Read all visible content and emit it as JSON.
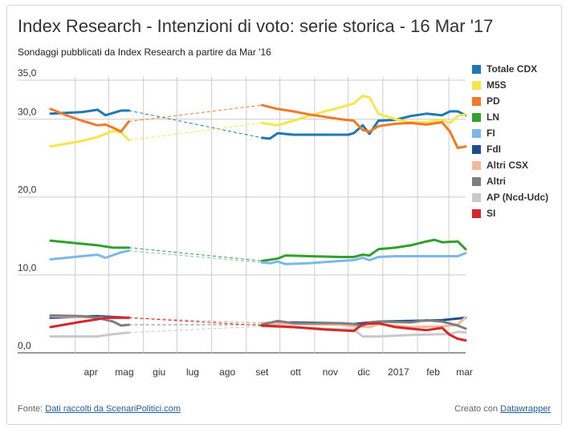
{
  "title": "Index Research - Intenzioni di voto: serie storica - 16 Mar '17",
  "subtitle": "Sondaggi pubblicati da Index Research a partire da Mar '16",
  "footer": {
    "source_prefix": "Fonte:",
    "source_link": "Dati raccolti da ScenariPolitici.com",
    "credit_prefix": "Creato con",
    "credit_link": "Datawrapper"
  },
  "chart_data": {
    "type": "line",
    "title": "Index Research - Intenzioni di voto: serie storica - 16 Mar '17",
    "subtitle": "Sondaggi pubblicati da Index Research a partire da Mar '16",
    "xlabel": "",
    "ylabel": "",
    "ylim": [
      0,
      35
    ],
    "y_ticks": [
      "0,0",
      "10,0",
      "20,0",
      "30,0",
      "35,0"
    ],
    "y_tick_values": [
      0,
      10,
      20,
      30,
      35
    ],
    "x_range": [
      "2016-03-10",
      "2017-03-16"
    ],
    "x_ticks": [
      {
        "date": "2016-04-01",
        "label": "apr"
      },
      {
        "date": "2016-05-01",
        "label": "mag"
      },
      {
        "date": "2016-06-01",
        "label": "giu"
      },
      {
        "date": "2016-07-01",
        "label": "lug"
      },
      {
        "date": "2016-08-01",
        "label": "ago"
      },
      {
        "date": "2016-09-01",
        "label": "set"
      },
      {
        "date": "2016-10-01",
        "label": "ott"
      },
      {
        "date": "2016-11-01",
        "label": "nov"
      },
      {
        "date": "2016-12-01",
        "label": "dic"
      },
      {
        "date": "2017-01-01",
        "label": "2017"
      },
      {
        "date": "2017-02-01",
        "label": "feb"
      },
      {
        "date": "2017-03-01",
        "label": "mar"
      }
    ],
    "grid": true,
    "legend_position": "right",
    "gap": [
      "2016-05-19",
      "2016-09-15"
    ],
    "series": [
      {
        "name": "Totale CDX",
        "color": "#1f77b4",
        "points": [
          [
            "2016-03-10",
            30.7
          ],
          [
            "2016-04-07",
            30.9
          ],
          [
            "2016-04-21",
            31.2
          ],
          [
            "2016-04-28",
            30.5
          ],
          [
            "2016-05-12",
            31.1
          ],
          [
            "2016-05-19",
            31.1
          ],
          [
            "2016-09-15",
            27.6
          ],
          [
            "2016-09-22",
            27.5
          ],
          [
            "2016-09-29",
            28.2
          ],
          [
            "2016-10-13",
            28.0
          ],
          [
            "2016-10-27",
            28.0
          ],
          [
            "2016-11-10",
            28.0
          ],
          [
            "2016-11-24",
            28.0
          ],
          [
            "2016-12-01",
            28.0
          ],
          [
            "2016-12-06",
            28.2
          ],
          [
            "2016-12-14",
            29.2
          ],
          [
            "2016-12-20",
            28.1
          ],
          [
            "2016-12-28",
            29.8
          ],
          [
            "2017-01-12",
            29.9
          ],
          [
            "2017-01-26",
            30.4
          ],
          [
            "2017-02-09",
            30.7
          ],
          [
            "2017-02-23",
            30.5
          ],
          [
            "2017-03-02",
            31.0
          ],
          [
            "2017-03-09",
            31.0
          ],
          [
            "2017-03-16",
            30.5
          ]
        ]
      },
      {
        "name": "M5S",
        "color": "#f7e64b",
        "points": [
          [
            "2016-03-10",
            26.5
          ],
          [
            "2016-04-07",
            27.2
          ],
          [
            "2016-04-21",
            27.7
          ],
          [
            "2016-05-05",
            28.5
          ],
          [
            "2016-05-12",
            28.3
          ],
          [
            "2016-05-19",
            27.3
          ],
          [
            "2016-09-15",
            29.5
          ],
          [
            "2016-09-29",
            29.2
          ],
          [
            "2016-10-13",
            29.8
          ],
          [
            "2016-10-27",
            30.4
          ],
          [
            "2016-11-10",
            31.0
          ],
          [
            "2016-11-24",
            31.5
          ],
          [
            "2016-12-06",
            32.0
          ],
          [
            "2016-12-14",
            33.0
          ],
          [
            "2016-12-20",
            32.8
          ],
          [
            "2016-12-28",
            30.7
          ],
          [
            "2017-01-12",
            30.0
          ],
          [
            "2017-01-26",
            29.6
          ],
          [
            "2017-02-09",
            29.6
          ],
          [
            "2017-02-23",
            29.9
          ],
          [
            "2017-03-02",
            29.5
          ],
          [
            "2017-03-09",
            30.4
          ],
          [
            "2017-03-16",
            30.6
          ]
        ]
      },
      {
        "name": "PD",
        "color": "#ef7a28",
        "points": [
          [
            "2016-03-10",
            31.3
          ],
          [
            "2016-03-24",
            30.5
          ],
          [
            "2016-04-07",
            29.8
          ],
          [
            "2016-04-21",
            29.2
          ],
          [
            "2016-04-28",
            29.3
          ],
          [
            "2016-05-05",
            28.9
          ],
          [
            "2016-05-12",
            28.4
          ],
          [
            "2016-05-19",
            29.7
          ],
          [
            "2016-09-15",
            31.8
          ],
          [
            "2016-09-29",
            31.3
          ],
          [
            "2016-10-13",
            31.0
          ],
          [
            "2016-10-27",
            30.6
          ],
          [
            "2016-11-10",
            30.3
          ],
          [
            "2016-11-24",
            30.0
          ],
          [
            "2016-12-06",
            29.8
          ],
          [
            "2016-12-14",
            28.6
          ],
          [
            "2016-12-20",
            28.4
          ],
          [
            "2016-12-28",
            29.1
          ],
          [
            "2017-01-12",
            29.4
          ],
          [
            "2017-01-26",
            29.5
          ],
          [
            "2017-02-09",
            29.3
          ],
          [
            "2017-02-23",
            29.6
          ],
          [
            "2017-03-02",
            28.4
          ],
          [
            "2017-03-09",
            26.3
          ],
          [
            "2017-03-16",
            26.5
          ]
        ]
      },
      {
        "name": "LN",
        "color": "#32a02e",
        "points": [
          [
            "2016-03-10",
            14.4
          ],
          [
            "2016-04-07",
            14.0
          ],
          [
            "2016-04-21",
            13.8
          ],
          [
            "2016-05-05",
            13.5
          ],
          [
            "2016-05-19",
            13.5
          ],
          [
            "2016-09-15",
            11.8
          ],
          [
            "2016-09-29",
            12.1
          ],
          [
            "2016-10-06",
            12.5
          ],
          [
            "2016-10-27",
            12.4
          ],
          [
            "2016-11-24",
            12.3
          ],
          [
            "2016-12-06",
            12.3
          ],
          [
            "2016-12-14",
            12.6
          ],
          [
            "2016-12-20",
            12.5
          ],
          [
            "2016-12-28",
            13.3
          ],
          [
            "2017-01-12",
            13.5
          ],
          [
            "2017-01-26",
            13.8
          ],
          [
            "2017-02-09",
            14.3
          ],
          [
            "2017-02-16",
            14.5
          ],
          [
            "2017-02-23",
            14.2
          ],
          [
            "2017-03-09",
            14.3
          ],
          [
            "2017-03-16",
            13.3
          ]
        ]
      },
      {
        "name": "FI",
        "color": "#7cb8ea",
        "points": [
          [
            "2016-03-10",
            12.0
          ],
          [
            "2016-03-24",
            12.2
          ],
          [
            "2016-04-07",
            12.4
          ],
          [
            "2016-04-21",
            12.6
          ],
          [
            "2016-04-28",
            12.2
          ],
          [
            "2016-05-12",
            12.9
          ],
          [
            "2016-05-19",
            13.1
          ],
          [
            "2016-09-15",
            11.6
          ],
          [
            "2016-09-22",
            11.5
          ],
          [
            "2016-09-29",
            11.7
          ],
          [
            "2016-10-06",
            11.4
          ],
          [
            "2016-10-27",
            11.5
          ],
          [
            "2016-11-24",
            11.8
          ],
          [
            "2016-12-06",
            11.9
          ],
          [
            "2016-12-14",
            12.2
          ],
          [
            "2016-12-20",
            11.9
          ],
          [
            "2016-12-28",
            12.3
          ],
          [
            "2017-01-12",
            12.4
          ],
          [
            "2017-02-09",
            12.4
          ],
          [
            "2017-02-23",
            12.4
          ],
          [
            "2017-03-02",
            12.4
          ],
          [
            "2017-03-09",
            12.4
          ],
          [
            "2017-03-16",
            12.8
          ]
        ]
      },
      {
        "name": "FdI",
        "color": "#1f4e8c",
        "points": [
          [
            "2016-03-10",
            4.5
          ],
          [
            "2016-04-21",
            4.7
          ],
          [
            "2016-05-19",
            4.5
          ],
          [
            "2016-09-15",
            3.8
          ],
          [
            "2016-10-13",
            3.9
          ],
          [
            "2016-11-24",
            3.8
          ],
          [
            "2016-12-06",
            3.7
          ],
          [
            "2016-12-20",
            3.9
          ],
          [
            "2016-12-28",
            4.0
          ],
          [
            "2017-01-26",
            4.1
          ],
          [
            "2017-02-23",
            4.2
          ],
          [
            "2017-03-09",
            4.4
          ],
          [
            "2017-03-16",
            4.5
          ]
        ]
      },
      {
        "name": "Altri CSX",
        "color": "#f4b89d",
        "points": [
          [
            "2016-03-10",
            4.7
          ],
          [
            "2016-04-21",
            4.5
          ],
          [
            "2016-05-19",
            4.5
          ],
          [
            "2016-09-15",
            3.8
          ],
          [
            "2016-10-13",
            3.7
          ],
          [
            "2016-11-24",
            3.6
          ],
          [
            "2016-12-06",
            3.4
          ],
          [
            "2016-12-20",
            3.3
          ],
          [
            "2016-12-28",
            3.7
          ],
          [
            "2017-01-26",
            3.3
          ],
          [
            "2017-02-23",
            3.4
          ],
          [
            "2017-03-09",
            3.6
          ],
          [
            "2017-03-16",
            4.6
          ]
        ]
      },
      {
        "name": "Altri",
        "color": "#7f7f7f",
        "points": [
          [
            "2016-03-10",
            4.8
          ],
          [
            "2016-04-07",
            4.7
          ],
          [
            "2016-04-21",
            4.5
          ],
          [
            "2016-05-05",
            4.0
          ],
          [
            "2016-05-12",
            3.5
          ],
          [
            "2016-05-19",
            3.6
          ],
          [
            "2016-09-15",
            3.6
          ],
          [
            "2016-09-29",
            4.1
          ],
          [
            "2016-10-13",
            3.8
          ],
          [
            "2016-11-24",
            3.8
          ],
          [
            "2016-12-06",
            3.7
          ],
          [
            "2016-12-14",
            3.5
          ],
          [
            "2016-12-20",
            3.9
          ],
          [
            "2016-12-28",
            4.0
          ],
          [
            "2017-01-26",
            3.9
          ],
          [
            "2017-02-09",
            4.2
          ],
          [
            "2017-02-23",
            4.0
          ],
          [
            "2017-03-09",
            3.5
          ],
          [
            "2017-03-16",
            3.1
          ]
        ]
      },
      {
        "name": "AP (Ncd-Udc)",
        "color": "#c9c9c9",
        "points": [
          [
            "2016-03-10",
            2.1
          ],
          [
            "2016-04-21",
            2.1
          ],
          [
            "2016-05-05",
            2.4
          ],
          [
            "2016-05-19",
            2.6
          ],
          [
            "2016-09-15",
            3.4
          ],
          [
            "2016-10-27",
            3.2
          ],
          [
            "2016-11-24",
            3.0
          ],
          [
            "2016-12-06",
            3.0
          ],
          [
            "2016-12-14",
            2.1
          ],
          [
            "2016-12-28",
            2.1
          ],
          [
            "2017-01-26",
            2.3
          ],
          [
            "2017-02-23",
            2.4
          ],
          [
            "2017-03-02",
            2.4
          ],
          [
            "2017-03-09",
            2.7
          ],
          [
            "2017-03-16",
            2.6
          ]
        ]
      },
      {
        "name": "SI",
        "color": "#d62728",
        "points": [
          [
            "2016-03-10",
            3.3
          ],
          [
            "2016-04-07",
            4.0
          ],
          [
            "2016-04-21",
            4.3
          ],
          [
            "2016-04-28",
            4.5
          ],
          [
            "2016-05-19",
            4.5
          ],
          [
            "2016-09-15",
            3.5
          ],
          [
            "2016-10-13",
            3.3
          ],
          [
            "2016-11-10",
            3.0
          ],
          [
            "2016-12-06",
            2.8
          ],
          [
            "2016-12-14",
            3.7
          ],
          [
            "2016-12-28",
            3.8
          ],
          [
            "2017-01-12",
            3.3
          ],
          [
            "2017-01-26",
            3.1
          ],
          [
            "2017-02-09",
            2.9
          ],
          [
            "2017-02-23",
            3.2
          ],
          [
            "2017-03-02",
            2.3
          ],
          [
            "2017-03-09",
            1.8
          ],
          [
            "2017-03-16",
            1.6
          ]
        ]
      }
    ]
  }
}
